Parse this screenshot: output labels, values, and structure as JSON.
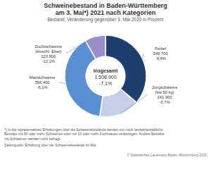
{
  "chart_data": {
    "type": "donut",
    "title": "Schweinebestand in Baden-Württemberg\nam 3. Mai*) 2021 nach Kategorien",
    "subtitle": "Bestand; Veränderung gegenüber 3. Mai 2020 in Prozent",
    "categories": [
      "Ferkel",
      "Jungschweine\n(bis 50 kg)",
      "Mastschweine",
      "Zuchtschweine\n(einschl. Eber)"
    ],
    "values": [
      546700,
      241900,
      596400,
      123900
    ],
    "value_labels": [
      "546.700",
      "241.900",
      "596.400",
      "123.900"
    ],
    "changes": [
      -9.6,
      -0.7,
      -6.1,
      -12.1
    ],
    "change_labels": [
      "-9,6%",
      "-0,7%",
      "-6,1%",
      "-12,1%"
    ],
    "colors": [
      "#1f3f6e",
      "#c5cfe8",
      "#5b8fd4",
      "#9b8dc8"
    ],
    "center": {
      "label": "Insgesamt",
      "value": 1508900,
      "value_label": "1.508.900",
      "change": -7.1,
      "change_label": "-7,1%"
    },
    "annotations": [
      "*) In die repräsentativen Erhebungen über die Schweinebestände werden nur noch landwirtschaftliche\nBetriebe mit 50 oder mehr Schweinen oder mit 10 oder mehr Zuchtsauen einbezogen. Andere Betriebe\nmit Schweinen werden nicht befragt.",
      "Datenquelle: Erhebung über die Schweinebestände im Mai",
      "© Statistisches Landesamt Baden-Württemberg 2021"
    ]
  }
}
